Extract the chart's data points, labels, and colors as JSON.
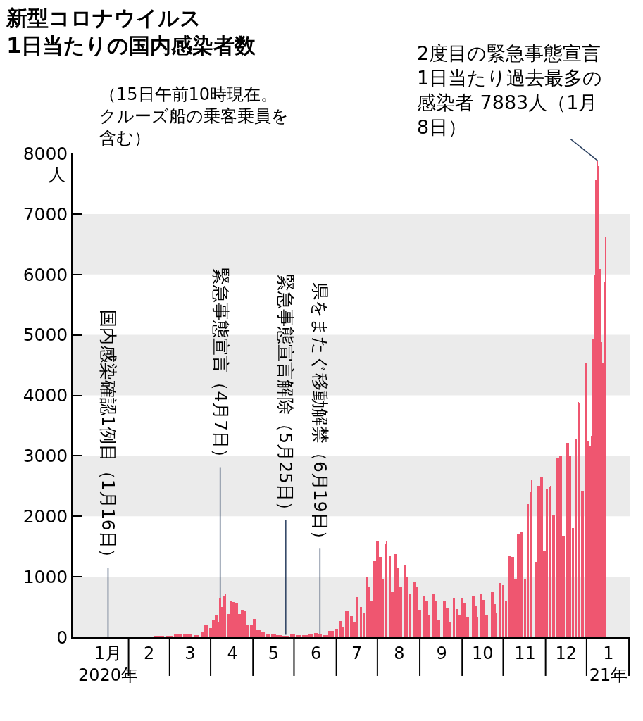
{
  "chart_data": {
    "type": "bar",
    "title": "新型コロナウイルス\n1日当たりの国内感染者数",
    "ylabel": "人",
    "x": [
      "2020-02-22",
      "2020-03-01",
      "2020-03-07",
      "2020-03-14",
      "2020-03-21",
      "2020-03-25",
      "2020-03-28",
      "2020-03-31",
      "2020-04-02",
      "2020-04-04",
      "2020-04-06",
      "2020-04-07",
      "2020-04-08",
      "2020-04-10",
      "2020-04-11",
      "2020-04-13",
      "2020-04-15",
      "2020-04-17",
      "2020-04-19",
      "2020-04-21",
      "2020-04-23",
      "2020-04-25",
      "2020-04-27",
      "2020-04-30",
      "2020-05-02",
      "2020-05-05",
      "2020-05-08",
      "2020-05-12",
      "2020-05-16",
      "2020-05-20",
      "2020-05-25",
      "2020-05-30",
      "2020-06-03",
      "2020-06-08",
      "2020-06-12",
      "2020-06-16",
      "2020-06-19",
      "2020-06-23",
      "2020-06-27",
      "2020-07-01",
      "2020-07-04",
      "2020-07-06",
      "2020-07-09",
      "2020-07-12",
      "2020-07-14",
      "2020-07-16",
      "2020-07-19",
      "2020-07-21",
      "2020-07-23",
      "2020-07-25",
      "2020-07-27",
      "2020-07-29",
      "2020-07-31",
      "2020-08-02",
      "2020-08-04",
      "2020-08-06",
      "2020-08-07",
      "2020-08-09",
      "2020-08-11",
      "2020-08-13",
      "2020-08-15",
      "2020-08-17",
      "2020-08-20",
      "2020-08-22",
      "2020-08-24",
      "2020-08-27",
      "2020-08-29",
      "2020-08-31",
      "2020-09-03",
      "2020-09-05",
      "2020-09-07",
      "2020-09-10",
      "2020-09-12",
      "2020-09-14",
      "2020-09-18",
      "2020-09-20",
      "2020-09-22",
      "2020-09-25",
      "2020-09-27",
      "2020-09-29",
      "2020-10-01",
      "2020-10-03",
      "2020-10-05",
      "2020-10-09",
      "2020-10-11",
      "2020-10-12",
      "2020-10-15",
      "2020-10-17",
      "2020-10-19",
      "2020-10-23",
      "2020-10-25",
      "2020-10-26",
      "2020-10-29",
      "2020-10-31",
      "2020-11-02",
      "2020-11-05",
      "2020-11-07",
      "2020-11-09",
      "2020-11-11",
      "2020-11-13",
      "2020-11-16",
      "2020-11-18",
      "2020-11-20",
      "2020-11-21",
      "2020-11-24",
      "2020-11-26",
      "2020-11-28",
      "2020-11-30",
      "2020-12-02",
      "2020-12-04",
      "2020-12-05",
      "2020-12-07",
      "2020-12-10",
      "2020-12-12",
      "2020-12-14",
      "2020-12-17",
      "2020-12-19",
      "2020-12-21",
      "2020-12-23",
      "2020-12-25",
      "2020-12-26",
      "2020-12-28",
      "2020-12-30",
      "2020-12-31",
      "2021-01-01",
      "2021-01-02",
      "2021-01-03",
      "2021-01-04",
      "2021-01-05",
      "2021-01-06",
      "2021-01-07",
      "2021-01-08",
      "2021-01-09",
      "2021-01-10",
      "2021-01-11",
      "2021-01-12",
      "2021-01-13",
      "2021-01-14"
    ],
    "values": [
      20,
      20,
      50,
      60,
      40,
      95,
      200,
      150,
      280,
      370,
      250,
      650,
      500,
      680,
      720,
      390,
      600,
      580,
      560,
      380,
      450,
      430,
      210,
      200,
      300,
      120,
      90,
      60,
      50,
      30,
      20,
      45,
      40,
      30,
      55,
      70,
      55,
      35,
      100,
      130,
      270,
      180,
      430,
      350,
      250,
      660,
      500,
      400,
      990,
      840,
      600,
      1260,
      1590,
      1330,
      950,
      1540,
      1600,
      1340,
      750,
      1370,
      1150,
      840,
      1190,
      1000,
      720,
      910,
      840,
      440,
      680,
      600,
      370,
      720,
      600,
      290,
      600,
      480,
      255,
      640,
      470,
      370,
      640,
      560,
      330,
      680,
      520,
      330,
      720,
      620,
      370,
      750,
      550,
      410,
      900,
      860,
      600,
      1340,
      1330,
      950,
      1710,
      1740,
      950,
      2200,
      2400,
      2600,
      1250,
      2500,
      2660,
      1430,
      2450,
      2480,
      2500,
      2020,
      2970,
      3000,
      1680,
      3210,
      2990,
      1800,
      3270,
      3890,
      3880,
      2420,
      3850,
      4530,
      3240,
      3060,
      3150,
      3330,
      4920,
      6000,
      7570,
      7883,
      7790,
      6090,
      4880,
      4540,
      5880,
      6610
    ],
    "color": "#ef5670",
    "xlim": [
      "2019-12-21",
      "2021-02-01"
    ],
    "xticks": [
      {
        "value": "2020-01-16",
        "label": "1月\n2020年"
      },
      {
        "value": "2020-02-15",
        "label": "2"
      },
      {
        "value": "2020-03-16",
        "label": "3"
      },
      {
        "value": "2020-04-16",
        "label": "4"
      },
      {
        "value": "2020-05-16",
        "label": "5"
      },
      {
        "value": "2020-06-16",
        "label": "6"
      },
      {
        "value": "2020-07-16",
        "label": "7"
      },
      {
        "value": "2020-08-16",
        "label": "8"
      },
      {
        "value": "2020-09-16",
        "label": "9"
      },
      {
        "value": "2020-10-16",
        "label": "10"
      },
      {
        "value": "2020-11-16",
        "label": "11"
      },
      {
        "value": "2020-12-16",
        "label": "12"
      },
      {
        "value": "2021-01-16",
        "label": "1\n21年"
      }
    ],
    "ylim": [
      0,
      8000
    ],
    "yticks": [
      0,
      1000,
      2000,
      3000,
      4000,
      5000,
      6000,
      7000,
      8000
    ],
    "bands": [
      {
        "axis": "y",
        "from": 0,
        "to": 1000,
        "color": "#ebebeb"
      },
      {
        "axis": "y",
        "from": 2000,
        "to": 3000,
        "color": "#ebebeb"
      },
      {
        "axis": "y",
        "from": 4000,
        "to": 5000,
        "color": "#ebebeb"
      },
      {
        "axis": "y",
        "from": 6000,
        "to": 7000,
        "color": "#ebebeb"
      }
    ],
    "annotations": [
      "（15日午前10時現在。クルーズ船の乗客乗員を含む）",
      {
        "text": "国内感染確認1例目（1月16日）",
        "x": "2020-01-16",
        "y": 0
      },
      {
        "text": "緊急事態宣言（4月7日）",
        "x": "2020-04-07",
        "y": 650
      },
      {
        "text": "緊急事態宣言解除（5月25日）",
        "x": "2020-05-25",
        "y": 40
      },
      {
        "text": "県をまたぐ移動解禁（6月19日）",
        "x": "2020-06-19",
        "y": 50
      },
      {
        "text": "2度目の緊急事態宣言1日当たり過去最多の感染者 7883人（1月8日）",
        "x": "2021-01-08",
        "y": 7883
      }
    ]
  }
}
